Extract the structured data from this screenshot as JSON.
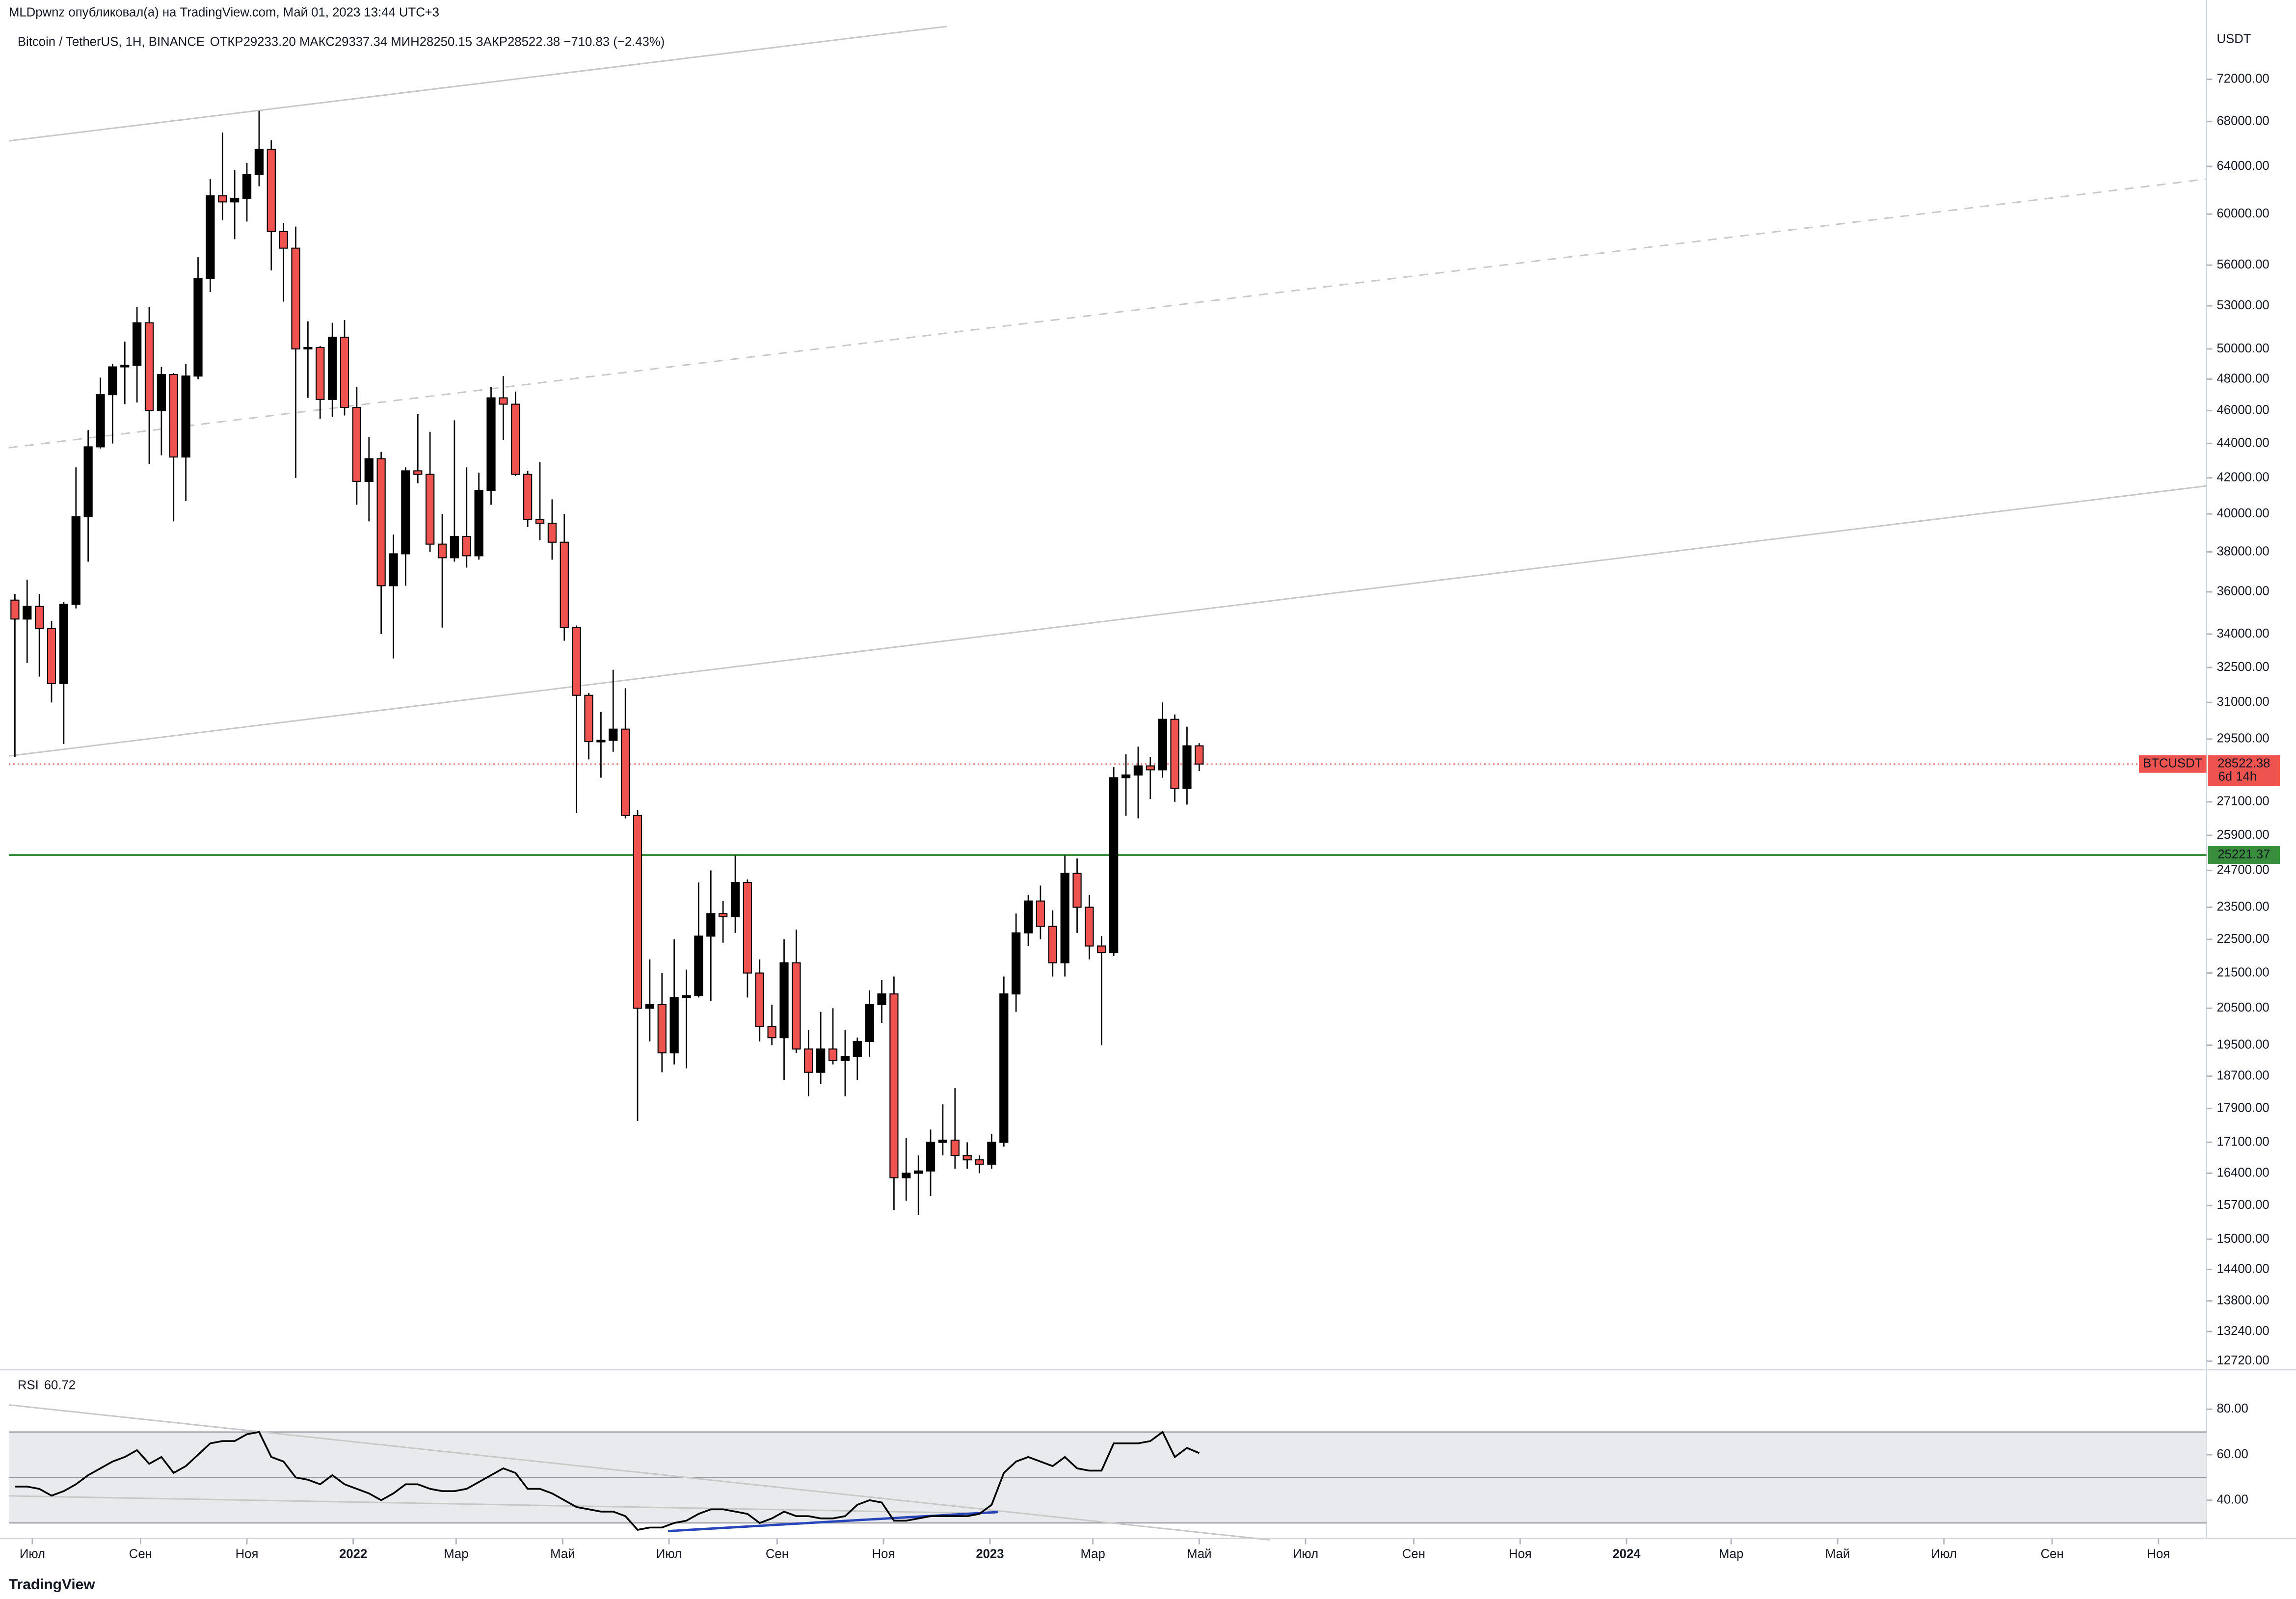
{
  "page_header": "MLDpwnz опубликовал(а) на TradingView.com, Май 01, 2023 13:44 UTC+3",
  "footer": "TradingView",
  "chart_data": {
    "type": "candlestick",
    "title": "Bitcoin / TetherUS, 1Н, BINANCE",
    "legend_values": "ОТКР29233.20   МАКС29337.34   МИН28250.15   ЗАКР28522.38   −710.83 (−2.43%)",
    "y_axis_label": "USDT",
    "log_scale": true,
    "series_name": "BTCUSDT",
    "colors": {
      "up": "#000000",
      "down": "#ef5350",
      "wick": "#000000"
    },
    "open": [
      35600,
      34700,
      35300,
      34250,
      31800,
      35400,
      39850,
      43800,
      47000,
      48800,
      48900,
      51800,
      46000,
      48300,
      43200,
      48200,
      55000,
      61500,
      61000,
      61300,
      63300,
      65500,
      58600,
      57300,
      50000,
      50100,
      46700,
      50800,
      46200,
      41800,
      43100,
      36300,
      37900,
      42400,
      42200,
      38400,
      37700,
      38800,
      37800,
      41300,
      46800,
      46400,
      42200,
      39700,
      39500,
      38500,
      34300,
      31300,
      29400,
      29450,
      29900,
      26600,
      20500,
      20600,
      19300,
      20800,
      20850,
      22600,
      23300,
      23200,
      24300,
      21500,
      20000,
      19700,
      21800,
      19400,
      18800,
      19400,
      19100,
      19200,
      19600,
      20600,
      20900,
      16300,
      16400,
      16450,
      17100,
      17150,
      16800,
      16700,
      16600,
      17100,
      20900,
      22700,
      23700,
      22900,
      21800,
      24600,
      23500,
      22300,
      22100,
      28000,
      28100,
      28450,
      28300,
      30300,
      27600,
      29233.2
    ],
    "high": [
      35900,
      36600,
      35900,
      34600,
      35500,
      42600,
      44800,
      48100,
      49000,
      50500,
      52900,
      52900,
      48800,
      48400,
      49000,
      56600,
      62900,
      67000,
      63700,
      64300,
      69000,
      66300,
      59300,
      59000,
      51900,
      50200,
      51800,
      52000,
      47500,
      44400,
      43500,
      38900,
      42600,
      45800,
      44700,
      40000,
      45400,
      42600,
      42300,
      47500,
      48200,
      47200,
      42400,
      42900,
      40800,
      40000,
      34400,
      31400,
      30600,
      32400,
      31600,
      26800,
      21900,
      21500,
      22500,
      21600,
      24300,
      24700,
      23700,
      25200,
      24400,
      21900,
      20600,
      22500,
      22800,
      19900,
      20400,
      20500,
      19900,
      19700,
      21000,
      21300,
      21400,
      17200,
      16800,
      17400,
      18000,
      18400,
      17100,
      16800,
      17300,
      21400,
      23300,
      23900,
      24200,
      23400,
      25200,
      25100,
      23900,
      22600,
      28400,
      28900,
      29200,
      28800,
      31000,
      30500,
      30000,
      29337.34
    ],
    "low": [
      28800,
      32700,
      32100,
      31000,
      29300,
      35200,
      37500,
      43700,
      44000,
      46400,
      46500,
      42800,
      43300,
      39600,
      40700,
      48000,
      54000,
      59500,
      58000,
      59400,
      62300,
      55600,
      53300,
      42000,
      46800,
      45500,
      45600,
      45700,
      40500,
      39600,
      34000,
      32900,
      36300,
      41700,
      38000,
      34300,
      37500,
      37200,
      37600,
      40500,
      44200,
      42100,
      39300,
      38600,
      37600,
      33700,
      26700,
      28700,
      28000,
      29000,
      26500,
      17600,
      19600,
      18800,
      19000,
      18900,
      20800,
      20700,
      22400,
      22700,
      20800,
      19600,
      19500,
      18600,
      19300,
      18200,
      18500,
      19000,
      18200,
      18600,
      19200,
      20100,
      15600,
      15800,
      15500,
      15900,
      16800,
      16500,
      16500,
      16400,
      16500,
      17000,
      20400,
      22300,
      22500,
      21400,
      21400,
      22700,
      21900,
      19500,
      22000,
      26600,
      26500,
      27200,
      28000,
      27100,
      27000,
      28250.15
    ],
    "close": [
      34700,
      35300,
      34250,
      31800,
      35400,
      39850,
      43800,
      47000,
      48800,
      48900,
      51800,
      46000,
      48300,
      43200,
      48200,
      55000,
      61500,
      61000,
      61300,
      63300,
      65500,
      58600,
      57300,
      50000,
      50100,
      46700,
      50800,
      46200,
      41800,
      43100,
      36300,
      37900,
      42400,
      42200,
      38400,
      37700,
      38800,
      37800,
      41300,
      46800,
      46400,
      42200,
      39700,
      39500,
      38500,
      34300,
      31300,
      29400,
      29450,
      29900,
      26600,
      20500,
      20600,
      19300,
      20800,
      20850,
      22600,
      23300,
      23200,
      24300,
      21500,
      20000,
      19700,
      21800,
      19400,
      18800,
      19400,
      19100,
      19200,
      19600,
      20600,
      20900,
      16300,
      16400,
      16450,
      17100,
      17150,
      16800,
      16700,
      16600,
      17100,
      20900,
      22700,
      23700,
      22900,
      21800,
      24600,
      23500,
      22300,
      22100,
      28000,
      28100,
      28450,
      28300,
      30300,
      27600,
      29233.2,
      28522.38
    ],
    "last_price": 28522.38,
    "countdown": "6d 14h",
    "horizontal_line": {
      "value": 25221.37,
      "color": "#388e3c"
    },
    "ylim": [
      12600,
      80150
    ],
    "yticks": [
      {
        "value": 72000,
        "label": "72000.00"
      },
      {
        "value": 68000,
        "label": "68000.00"
      },
      {
        "value": 64000,
        "label": "64000.00"
      },
      {
        "value": 60000,
        "label": "60000.00"
      },
      {
        "value": 56000,
        "label": "56000.00"
      },
      {
        "value": 53000,
        "label": "53000.00"
      },
      {
        "value": 50000,
        "label": "50000.00"
      },
      {
        "value": 48000,
        "label": "48000.00"
      },
      {
        "value": 46000,
        "label": "46000.00"
      },
      {
        "value": 44000,
        "label": "44000.00"
      },
      {
        "value": 42000,
        "label": "42000.00"
      },
      {
        "value": 40000,
        "label": "40000.00"
      },
      {
        "value": 38000,
        "label": "38000.00"
      },
      {
        "value": 36000,
        "label": "36000.00"
      },
      {
        "value": 34000,
        "label": "34000.00"
      },
      {
        "value": 32500,
        "label": "32500.00"
      },
      {
        "value": 31000,
        "label": "31000.00"
      },
      {
        "value": 29500,
        "label": "29500.00"
      },
      {
        "value": 27100,
        "label": "27100.00"
      },
      {
        "value": 25900,
        "label": "25900.00"
      },
      {
        "value": 24700,
        "label": "24700.00"
      },
      {
        "value": 23500,
        "label": "23500.00"
      },
      {
        "value": 22500,
        "label": "22500.00"
      },
      {
        "value": 21500,
        "label": "21500.00"
      },
      {
        "value": 20500,
        "label": "20500.00"
      },
      {
        "value": 19500,
        "label": "19500.00"
      },
      {
        "value": 18700,
        "label": "18700.00"
      },
      {
        "value": 17900,
        "label": "17900.00"
      },
      {
        "value": 17100,
        "label": "17100.00"
      },
      {
        "value": 16400,
        "label": "16400.00"
      },
      {
        "value": 15700,
        "label": "15700.00"
      },
      {
        "value": 15000,
        "label": "15000.00"
      },
      {
        "value": 14400,
        "label": "14400.00"
      },
      {
        "value": 13800,
        "label": "13800.00"
      },
      {
        "value": 13240,
        "label": "13240.00"
      },
      {
        "value": 12720,
        "label": "12720.00"
      }
    ],
    "xlim": [
      -0.5,
      179.5
    ],
    "xticks": [
      {
        "value": 1.43,
        "label": "Июл"
      },
      {
        "value": 10.29,
        "label": "Сен"
      },
      {
        "value": 19,
        "label": "Ноя"
      },
      {
        "value": 27.71,
        "label": "2022"
      },
      {
        "value": 36.14,
        "label": "Мар"
      },
      {
        "value": 44.86,
        "label": "Май"
      },
      {
        "value": 53.57,
        "label": "Июл"
      },
      {
        "value": 62.43,
        "label": "Сен"
      },
      {
        "value": 71.14,
        "label": "Ноя"
      },
      {
        "value": 79.86,
        "label": "2023"
      },
      {
        "value": 88.29,
        "label": "Мар"
      },
      {
        "value": 97,
        "label": "Май"
      },
      {
        "value": 105.71,
        "label": "Июл"
      },
      {
        "value": 114.57,
        "label": "Сен"
      },
      {
        "value": 123.29,
        "label": "Ноя"
      },
      {
        "value": 132,
        "label": "2024"
      },
      {
        "value": 140.57,
        "label": "Мар"
      },
      {
        "value": 149.29,
        "label": "Май"
      },
      {
        "value": 158,
        "label": "Июл"
      },
      {
        "value": 166.86,
        "label": "Сен"
      },
      {
        "value": 175.57,
        "label": "Ноя"
      }
    ],
    "rsi": {
      "name": "RSI",
      "value_label": "60.72",
      "color": "#000000",
      "values": [
        46,
        46,
        45,
        42,
        44,
        47,
        51,
        54,
        57,
        59,
        62,
        56,
        59,
        52,
        55,
        60,
        65,
        66,
        66,
        69,
        70,
        59,
        57,
        50,
        49,
        47,
        51,
        47,
        45,
        43,
        40,
        43,
        47,
        47,
        45,
        44,
        44,
        45,
        48,
        51,
        54,
        52,
        45,
        45,
        43,
        40,
        37,
        36,
        35,
        35,
        33,
        27,
        28,
        28,
        30,
        31,
        34,
        36,
        36,
        35,
        34,
        30,
        32,
        35,
        33,
        33,
        32,
        32,
        33,
        38,
        40,
        39,
        31,
        31,
        32,
        33,
        33,
        33,
        33,
        34,
        38,
        52,
        57,
        59,
        57,
        55,
        59,
        54,
        53,
        53,
        65,
        65,
        65,
        66,
        70,
        59,
        63,
        60.72
      ],
      "band": [
        30,
        70
      ],
      "midline": 50,
      "ylim": [
        23.2,
        97.4
      ],
      "yticks": [
        {
          "value": 80,
          "label": "80.00"
        },
        {
          "value": 60,
          "label": "60.00"
        },
        {
          "value": 40,
          "label": "40.00"
        }
      ]
    }
  }
}
